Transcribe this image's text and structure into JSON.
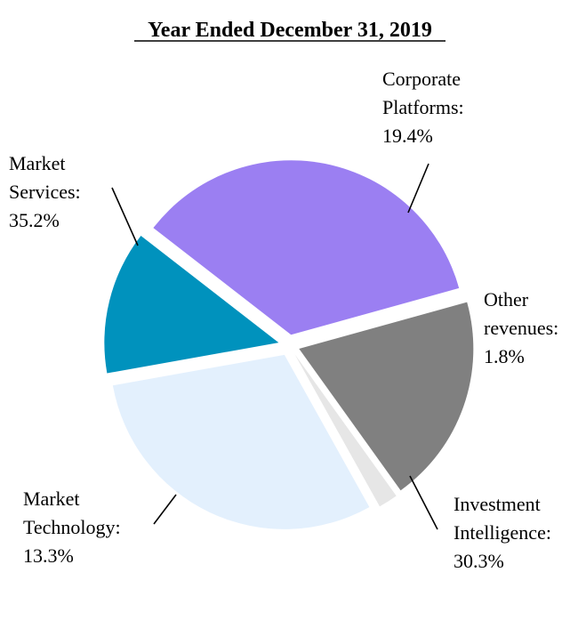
{
  "chart_data": {
    "type": "pie",
    "title": "Year Ended December 31, 2019",
    "slices": [
      {
        "lines": [
          "Corporate",
          "Platforms:",
          "19.4%"
        ],
        "value": 19.4,
        "color": "#808080"
      },
      {
        "lines": [
          "Other",
          "revenues:",
          "1.8%"
        ],
        "value": 1.8,
        "color": "#e6e6e6"
      },
      {
        "lines": [
          "Investment",
          "Intelligence:",
          "30.3%"
        ],
        "value": 30.3,
        "color": "#e3f0fd"
      },
      {
        "lines": [
          "Market",
          "Technology:",
          "13.3%"
        ],
        "value": 13.3,
        "color": "#0092bd"
      },
      {
        "lines": [
          "Market",
          "Services:",
          "35.2%"
        ],
        "value": 35.2,
        "color": "#9b7ff2"
      }
    ],
    "legend": "none"
  }
}
